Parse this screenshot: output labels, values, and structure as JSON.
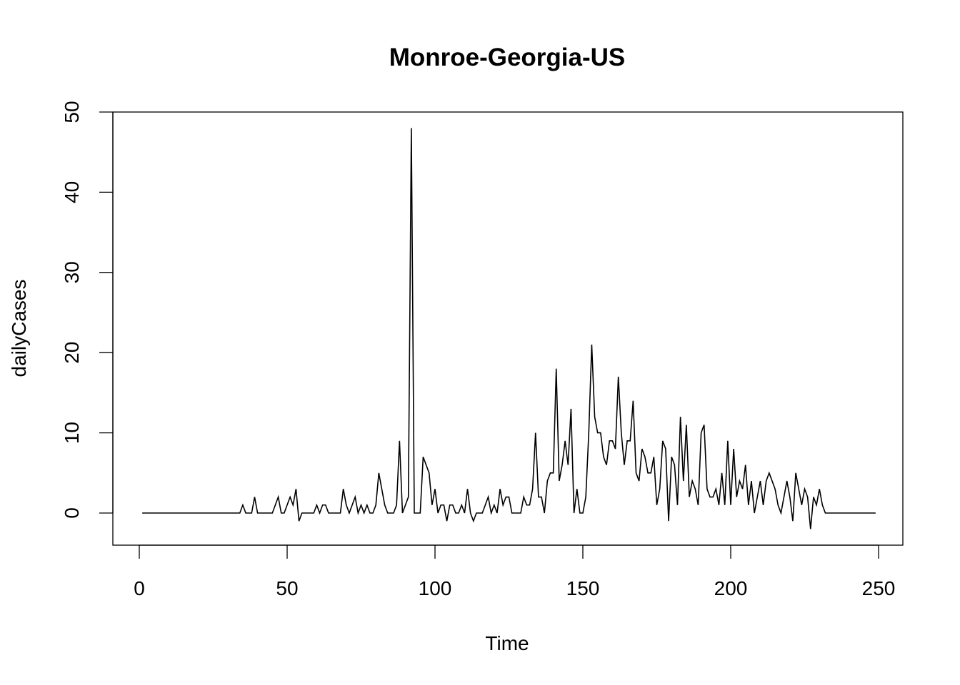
{
  "chart_data": {
    "type": "line",
    "title": "Monroe-Georgia-US",
    "xlabel": "Time",
    "ylabel": "dailyCases",
    "xlim": [
      0,
      250
    ],
    "ylim": [
      0,
      50
    ],
    "x_ticks": [
      0,
      50,
      100,
      150,
      200,
      250
    ],
    "y_ticks": [
      0,
      10,
      20,
      30,
      40,
      50
    ],
    "x_tick_labels": [
      "0",
      "50",
      "100",
      "150",
      "200",
      "250"
    ],
    "y_tick_labels": [
      "0",
      "10",
      "20",
      "30",
      "40",
      "50"
    ],
    "grid": false,
    "legend": "none",
    "line_color": "#000000",
    "x_start": 1,
    "series": [
      {
        "values": [
          0,
          0,
          0,
          0,
          0,
          0,
          0,
          0,
          0,
          0,
          0,
          0,
          0,
          0,
          0,
          0,
          0,
          0,
          0,
          0,
          0,
          0,
          0,
          0,
          0,
          0,
          0,
          0,
          0,
          0,
          0,
          0,
          0,
          0,
          1,
          0,
          0,
          0,
          2,
          0,
          0,
          0,
          0,
          0,
          0,
          1,
          2,
          0,
          0,
          1,
          2,
          1,
          3,
          -1,
          0,
          0,
          0,
          0,
          0,
          1,
          0,
          1,
          1,
          0,
          0,
          0,
          0,
          0,
          3,
          1,
          0,
          1,
          2,
          0,
          1,
          0,
          1,
          0,
          0,
          1,
          5,
          3,
          1,
          0,
          0,
          0,
          1,
          9,
          0,
          1,
          2,
          48,
          0,
          0,
          0,
          7,
          6,
          5,
          1,
          3,
          0,
          1,
          1,
          -1,
          1,
          1,
          0,
          0,
          1,
          0,
          3,
          0,
          -1,
          0,
          0,
          0,
          1,
          2,
          0,
          1,
          0,
          3,
          1,
          2,
          2,
          0,
          0,
          0,
          0,
          2,
          1,
          1,
          3,
          10,
          2,
          2,
          0,
          4,
          5,
          5,
          18,
          4,
          6,
          9,
          6,
          13,
          0,
          3,
          0,
          0,
          2,
          10,
          21,
          12,
          10,
          10,
          7,
          6,
          9,
          9,
          8,
          17,
          10,
          6,
          9,
          9,
          14,
          5,
          4,
          8,
          7,
          5,
          5,
          7,
          1,
          3,
          9,
          8,
          -1,
          7,
          6,
          1,
          12,
          4,
          11,
          2,
          4,
          3,
          1,
          10,
          11,
          3,
          2,
          2,
          3,
          1,
          5,
          1,
          9,
          1,
          8,
          2,
          4,
          3,
          6,
          1,
          4,
          0,
          2,
          4,
          1,
          4,
          5,
          4,
          3,
          1,
          0,
          2,
          4,
          2,
          -1,
          5,
          3,
          1,
          3,
          2,
          -2,
          2,
          1,
          3,
          1,
          0,
          0,
          0,
          0,
          0,
          0,
          0,
          0,
          0,
          0,
          0,
          0,
          0,
          0,
          0,
          0,
          0,
          0
        ]
      }
    ]
  }
}
